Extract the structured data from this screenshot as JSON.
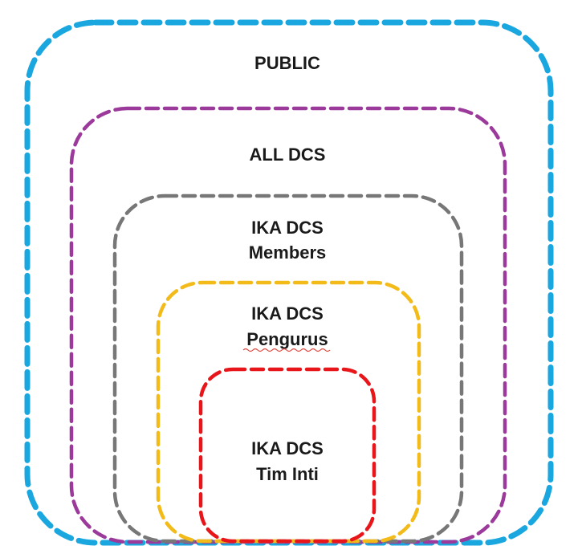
{
  "diagram": {
    "rings": [
      {
        "id": "public",
        "lines": [
          "PUBLIC"
        ],
        "color": "#1aa7e0"
      },
      {
        "id": "all-dcs",
        "lines": [
          "ALL DCS"
        ],
        "color": "#9b3a9b"
      },
      {
        "id": "members",
        "lines": [
          "IKA DCS",
          "Members"
        ],
        "color": "#777777"
      },
      {
        "id": "pengurus",
        "lines": [
          "IKA DCS",
          "Pengurus"
        ],
        "color": "#f2bb1a"
      },
      {
        "id": "tim-inti",
        "lines": [
          "IKA DCS",
          "Tim Inti"
        ],
        "color": "#e8161a"
      }
    ]
  }
}
